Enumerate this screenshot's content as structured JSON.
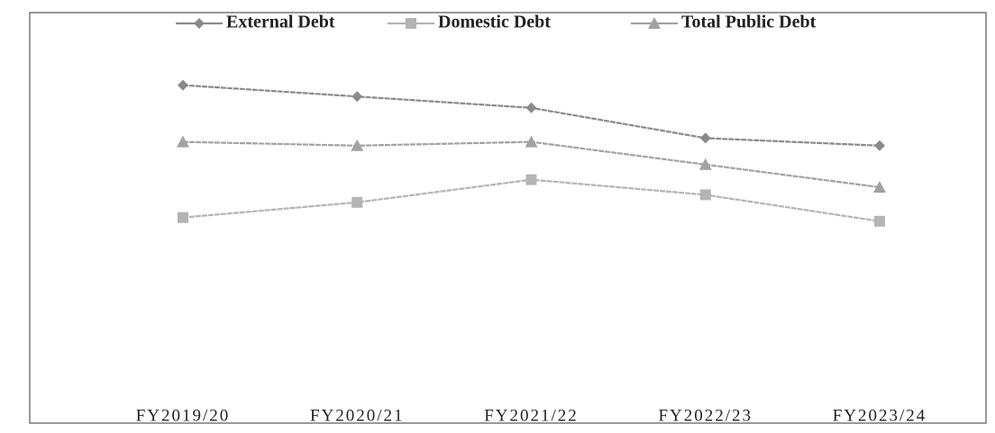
{
  "chart_data": {
    "type": "line",
    "categories": [
      "FY2019/20",
      "FY2020/21",
      "FY2021/22",
      "FY2022/23",
      "FY2023/24"
    ],
    "series": [
      {
        "name": "External Debt",
        "color": "#8a8a8a",
        "marker": "diamond",
        "values": [
          87,
          84,
          81,
          73,
          71
        ]
      },
      {
        "name": "Domestic Debt",
        "color": "#b4b4b4",
        "marker": "square",
        "values": [
          52,
          56,
          62,
          58,
          51
        ]
      },
      {
        "name": "Total Public Debt",
        "color": "#a2a2a2",
        "marker": "triangle",
        "values": [
          72,
          71,
          72,
          66,
          60
        ]
      }
    ],
    "ylim": [
      0,
      100
    ],
    "grid": false,
    "legend": "top"
  }
}
